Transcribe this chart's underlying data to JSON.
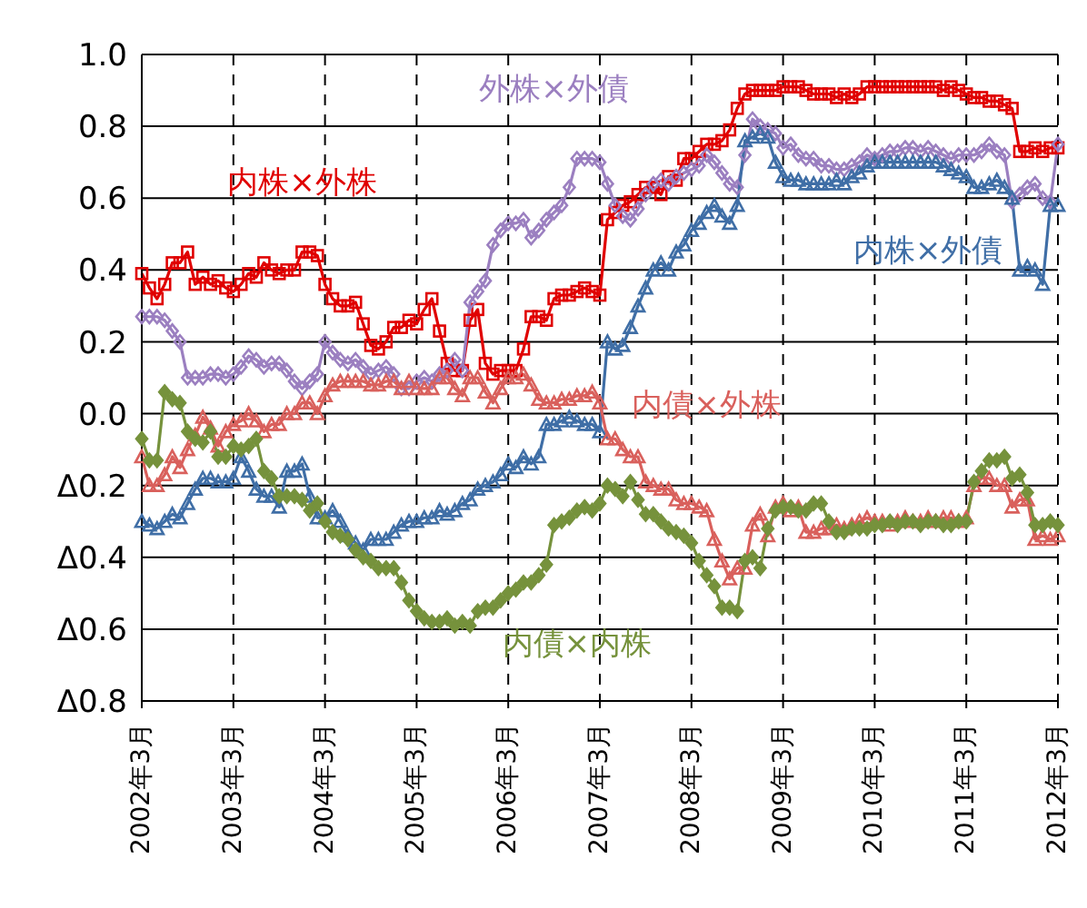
{
  "chart_data": {
    "type": "line",
    "categories": [
      "2002年3月",
      null,
      null,
      null,
      null,
      null,
      null,
      null,
      null,
      null,
      null,
      null,
      "2003年3月",
      null,
      null,
      null,
      null,
      null,
      null,
      null,
      null,
      null,
      null,
      null,
      "2004年3月",
      null,
      null,
      null,
      null,
      null,
      null,
      null,
      null,
      null,
      null,
      null,
      "2005年3月",
      null,
      null,
      null,
      null,
      null,
      null,
      null,
      null,
      null,
      null,
      null,
      "2006年3月",
      null,
      null,
      null,
      null,
      null,
      null,
      null,
      null,
      null,
      null,
      null,
      "2007年3月",
      null,
      null,
      null,
      null,
      null,
      null,
      null,
      null,
      null,
      null,
      null,
      "2008年3月",
      null,
      null,
      null,
      null,
      null,
      null,
      null,
      null,
      null,
      null,
      null,
      "2009年3月",
      null,
      null,
      null,
      null,
      null,
      null,
      null,
      null,
      null,
      null,
      null,
      "2010年3月",
      null,
      null,
      null,
      null,
      null,
      null,
      null,
      null,
      null,
      null,
      null,
      "2011年3月",
      null,
      null,
      null,
      null,
      null,
      null,
      null,
      null,
      null,
      null,
      null,
      "2012年3月"
    ],
    "series": [
      {
        "name": "内株×外株",
        "color": "#e00000",
        "marker": "square",
        "values": [
          0.39,
          0.35,
          0.32,
          0.36,
          0.42,
          0.42,
          0.45,
          0.36,
          0.38,
          0.36,
          0.37,
          0.35,
          0.34,
          0.36,
          0.39,
          0.38,
          0.42,
          0.4,
          0.39,
          0.4,
          0.4,
          0.45,
          0.45,
          0.44,
          0.36,
          0.32,
          0.3,
          0.3,
          0.31,
          0.25,
          0.19,
          0.18,
          0.2,
          0.24,
          0.24,
          0.26,
          0.25,
          0.29,
          0.32,
          0.23,
          0.14,
          0.12,
          0.12,
          0.26,
          0.29,
          0.14,
          0.11,
          0.12,
          0.12,
          0.12,
          0.18,
          0.27,
          0.27,
          0.26,
          0.32,
          0.33,
          0.33,
          0.34,
          0.35,
          0.34,
          0.33,
          0.54,
          0.56,
          0.58,
          0.59,
          0.61,
          0.63,
          0.63,
          0.61,
          0.66,
          0.65,
          0.71,
          0.71,
          0.73,
          0.75,
          0.75,
          0.76,
          0.79,
          0.85,
          0.89,
          0.9,
          0.9,
          0.9,
          0.9,
          0.91,
          0.91,
          0.91,
          0.9,
          0.89,
          0.89,
          0.89,
          0.88,
          0.89,
          0.88,
          0.89,
          0.91,
          0.91,
          0.91,
          0.91,
          0.91,
          0.91,
          0.91,
          0.91,
          0.91,
          0.91,
          0.9,
          0.91,
          0.9,
          0.89,
          0.88,
          0.88,
          0.87,
          0.87,
          0.86,
          0.85,
          0.73,
          0.73,
          0.74,
          0.73,
          0.74,
          0.74
        ]
      },
      {
        "name": "外株×外債",
        "color": "#9b7fc0",
        "marker": "diamond",
        "values": [
          0.27,
          0.27,
          0.27,
          0.26,
          0.23,
          0.2,
          0.1,
          0.1,
          0.1,
          0.11,
          0.11,
          0.1,
          0.11,
          0.13,
          0.16,
          0.15,
          0.13,
          0.14,
          0.14,
          0.12,
          0.09,
          0.07,
          0.09,
          0.11,
          0.2,
          0.17,
          0.15,
          0.14,
          0.15,
          0.13,
          0.11,
          0.12,
          0.13,
          0.11,
          0.07,
          0.07,
          0.09,
          0.1,
          0.09,
          0.11,
          0.12,
          0.15,
          0.12,
          0.31,
          0.34,
          0.37,
          0.47,
          0.51,
          0.53,
          0.53,
          0.54,
          0.49,
          0.51,
          0.54,
          0.56,
          0.58,
          0.63,
          0.71,
          0.71,
          0.71,
          0.7,
          0.64,
          0.58,
          0.55,
          0.54,
          0.57,
          0.61,
          0.64,
          0.65,
          0.64,
          0.66,
          0.67,
          0.68,
          0.69,
          0.72,
          0.7,
          0.67,
          0.64,
          0.63,
          0.72,
          0.82,
          0.8,
          0.79,
          0.78,
          0.74,
          0.75,
          0.72,
          0.71,
          0.71,
          0.69,
          0.69,
          0.68,
          0.68,
          0.69,
          0.7,
          0.72,
          0.71,
          0.72,
          0.73,
          0.73,
          0.74,
          0.74,
          0.73,
          0.74,
          0.73,
          0.72,
          0.71,
          0.72,
          0.72,
          0.72,
          0.73,
          0.75,
          0.73,
          0.72,
          0.59,
          0.61,
          0.63,
          0.64,
          0.6,
          0.59,
          0.75
        ]
      },
      {
        "name": "内株×外債",
        "color": "#3f6ea6",
        "marker": "triangle",
        "values": [
          -0.3,
          -0.31,
          -0.32,
          -0.3,
          -0.28,
          -0.29,
          -0.25,
          -0.21,
          -0.18,
          -0.18,
          -0.19,
          -0.19,
          -0.18,
          -0.12,
          -0.16,
          -0.21,
          -0.23,
          -0.23,
          -0.26,
          -0.16,
          -0.16,
          -0.14,
          -0.23,
          -0.29,
          -0.29,
          -0.27,
          -0.3,
          -0.34,
          -0.36,
          -0.38,
          -0.35,
          -0.35,
          -0.35,
          -0.33,
          -0.31,
          -0.3,
          -0.3,
          -0.29,
          -0.29,
          -0.27,
          -0.28,
          -0.27,
          -0.25,
          -0.24,
          -0.21,
          -0.2,
          -0.19,
          -0.17,
          -0.14,
          -0.15,
          -0.12,
          -0.14,
          -0.12,
          -0.03,
          -0.03,
          -0.02,
          -0.01,
          -0.02,
          -0.03,
          -0.03,
          -0.05,
          0.2,
          0.18,
          0.19,
          0.24,
          0.3,
          0.35,
          0.4,
          0.42,
          0.4,
          0.45,
          0.47,
          0.51,
          0.53,
          0.56,
          0.58,
          0.55,
          0.53,
          0.58,
          0.76,
          0.77,
          0.78,
          0.77,
          0.7,
          0.66,
          0.65,
          0.65,
          0.64,
          0.64,
          0.64,
          0.64,
          0.65,
          0.64,
          0.66,
          0.67,
          0.69,
          0.7,
          0.7,
          0.7,
          0.7,
          0.7,
          0.7,
          0.7,
          0.7,
          0.7,
          0.69,
          0.68,
          0.67,
          0.66,
          0.63,
          0.63,
          0.64,
          0.65,
          0.63,
          0.6,
          0.4,
          0.41,
          0.4,
          0.36,
          0.58,
          0.58
        ]
      },
      {
        "name": "内債×外株",
        "color": "#d9605c",
        "marker": "triangle",
        "values": [
          -0.12,
          -0.2,
          -0.2,
          -0.17,
          -0.12,
          -0.15,
          -0.1,
          -0.06,
          -0.01,
          -0.04,
          -0.09,
          -0.05,
          -0.03,
          -0.02,
          0.0,
          -0.02,
          -0.05,
          -0.03,
          -0.03,
          0.0,
          0.0,
          0.03,
          0.03,
          0.0,
          0.05,
          0.08,
          0.09,
          0.09,
          0.09,
          0.09,
          0.08,
          0.08,
          0.09,
          0.09,
          0.07,
          0.09,
          0.07,
          0.07,
          0.07,
          0.1,
          0.1,
          0.07,
          0.05,
          0.1,
          0.1,
          0.06,
          0.03,
          0.07,
          0.1,
          0.1,
          0.11,
          0.08,
          0.04,
          0.03,
          0.03,
          0.04,
          0.04,
          0.05,
          0.05,
          0.06,
          0.03,
          -0.07,
          -0.07,
          -0.1,
          -0.12,
          -0.12,
          -0.19,
          -0.2,
          -0.21,
          -0.21,
          -0.24,
          -0.25,
          -0.25,
          -0.26,
          -0.27,
          -0.35,
          -0.41,
          -0.46,
          -0.43,
          -0.43,
          -0.31,
          -0.28,
          -0.34,
          -0.26,
          -0.25,
          -0.27,
          -0.26,
          -0.33,
          -0.33,
          -0.32,
          -0.32,
          -0.31,
          -0.32,
          -0.31,
          -0.3,
          -0.29,
          -0.3,
          -0.3,
          -0.31,
          -0.3,
          -0.29,
          -0.3,
          -0.3,
          -0.29,
          -0.3,
          -0.29,
          -0.29,
          -0.3,
          -0.29,
          -0.2,
          -0.18,
          -0.18,
          -0.2,
          -0.2,
          -0.26,
          -0.24,
          -0.24,
          -0.35,
          -0.34,
          -0.35,
          -0.34
        ]
      },
      {
        "name": "内債×内株",
        "color": "#76923c",
        "marker": "diamond",
        "values": [
          -0.07,
          -0.13,
          -0.13,
          0.06,
          0.04,
          0.03,
          -0.05,
          -0.07,
          -0.08,
          -0.05,
          -0.12,
          -0.12,
          -0.09,
          -0.1,
          -0.09,
          -0.07,
          -0.16,
          -0.18,
          -0.23,
          -0.23,
          -0.23,
          -0.24,
          -0.27,
          -0.25,
          -0.3,
          -0.33,
          -0.34,
          -0.35,
          -0.38,
          -0.4,
          -0.41,
          -0.43,
          -0.43,
          -0.43,
          -0.47,
          -0.52,
          -0.55,
          -0.57,
          -0.58,
          -0.58,
          -0.57,
          -0.59,
          -0.58,
          -0.59,
          -0.55,
          -0.54,
          -0.54,
          -0.52,
          -0.5,
          -0.49,
          -0.47,
          -0.47,
          -0.45,
          -0.42,
          -0.31,
          -0.3,
          -0.29,
          -0.27,
          -0.26,
          -0.27,
          -0.25,
          -0.2,
          -0.21,
          -0.23,
          -0.19,
          -0.24,
          -0.28,
          -0.28,
          -0.3,
          -0.32,
          -0.33,
          -0.34,
          -0.36,
          -0.41,
          -0.45,
          -0.48,
          -0.54,
          -0.54,
          -0.55,
          -0.41,
          -0.4,
          -0.43,
          -0.32,
          -0.27,
          -0.26,
          -0.26,
          -0.27,
          -0.27,
          -0.25,
          -0.25,
          -0.3,
          -0.33,
          -0.33,
          -0.32,
          -0.32,
          -0.32,
          -0.31,
          -0.31,
          -0.3,
          -0.31,
          -0.3,
          -0.3,
          -0.31,
          -0.3,
          -0.3,
          -0.31,
          -0.31,
          -0.3,
          -0.3,
          -0.19,
          -0.16,
          -0.13,
          -0.13,
          -0.12,
          -0.18,
          -0.17,
          -0.22,
          -0.31,
          -0.31,
          -0.3,
          -0.31
        ]
      }
    ],
    "ylim": [
      -0.8,
      1.0
    ],
    "yticks": [
      {
        "value": 1.0,
        "label": "1.0"
      },
      0.8,
      0.6,
      0.4,
      0.2,
      {
        "value": 0,
        "label": "0.0"
      },
      {
        "value": -0.2,
        "label": "Δ0.2"
      },
      {
        "value": -0.4,
        "label": "Δ0.4"
      },
      {
        "value": -0.6,
        "label": "Δ0.6"
      },
      {
        "value": -0.8,
        "label": "Δ0.8"
      }
    ],
    "grid": true,
    "line_style": "solid"
  }
}
